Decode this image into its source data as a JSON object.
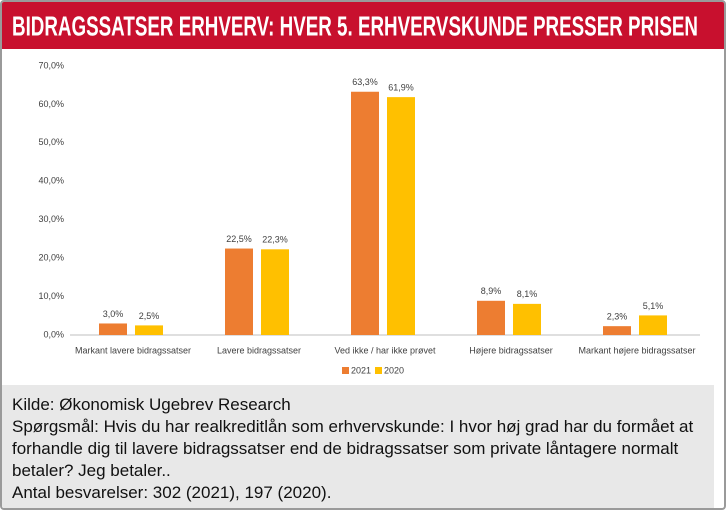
{
  "chart_data": {
    "type": "bar",
    "title": "BIDRAGSSATSER ERHVERV: HVER 5. ERHVERVSKUNDE PRESSER PRISEN",
    "categories": [
      "Markant lavere bidragssatser",
      "Lavere bidragssatser",
      "Ved ikke / har ikke prøvet",
      "Højere bidragssatser",
      "Markant højere bidragssatser"
    ],
    "series": [
      {
        "name": "2021",
        "color": "#ed7d31",
        "values": [
          3.0,
          22.5,
          63.3,
          8.9,
          2.3
        ],
        "value_labels": [
          "3,0%",
          "22,5%",
          "63,3%",
          "8,9%",
          "2,3%"
        ]
      },
      {
        "name": "2020",
        "color": "#ffc000",
        "values": [
          2.5,
          22.3,
          61.9,
          8.1,
          5.1
        ],
        "value_labels": [
          "2,5%",
          "22,3%",
          "61,9%",
          "8,1%",
          "5,1%"
        ]
      }
    ],
    "ylim": [
      0,
      70
    ],
    "yticks": [
      {
        "value": 0,
        "label": "0,0%"
      },
      {
        "value": 10,
        "label": "10,0%"
      },
      {
        "value": 20,
        "label": "20,0%"
      },
      {
        "value": 30,
        "label": "30,0%"
      },
      {
        "value": 40,
        "label": "40,0%"
      },
      {
        "value": 50,
        "label": "50,0%"
      },
      {
        "value": 60,
        "label": "60,0%"
      },
      {
        "value": 70,
        "label": "70,0%"
      }
    ],
    "grid": false,
    "legend": "bottom"
  },
  "footer": {
    "source": "Kilde: Økonomisk Ugebrev Research",
    "question": "Spørgsmål: Hvis du har realkreditlån som erhvervskunde: I hvor høj grad har du formået at forhandle dig til lavere bidragssatser end de bidragssatser som private låntagere normalt betaler? Jeg betaler..",
    "responses": "Antal besvarelser: 302 (2021), 197 (2020)."
  }
}
